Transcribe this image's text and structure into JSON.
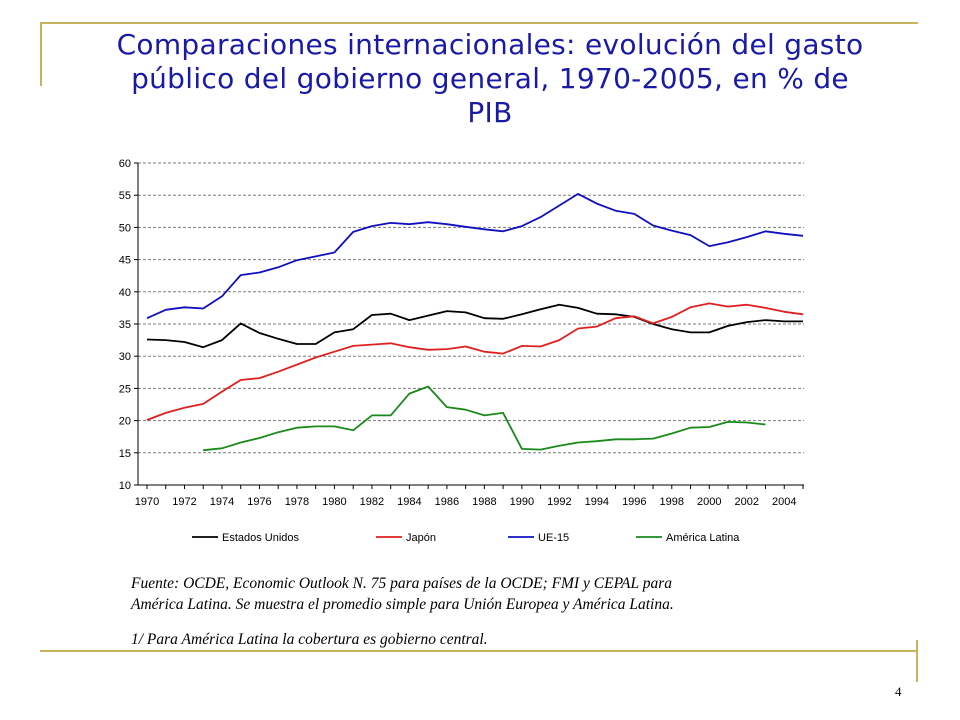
{
  "title_lines": [
    "Comparaciones internacionales: evolución del gasto",
    "público del gobierno general, 1970-2005, en % de",
    "PIB"
  ],
  "footnote": {
    "source_line1": "Fuente: OCDE, Economic Outlook N. 75 para países de la OCDE; FMI y CEPAL para",
    "source_line2": "América Latina. Se muestra el promedio simple para Unión Europea y América Latina.",
    "note": "1/ Para América Latina la cobertura es gobierno central."
  },
  "page_number": "4",
  "colors": {
    "title": "#1a1aa8",
    "decor": "#c8b45a"
  },
  "chart_data": {
    "type": "line",
    "x": [
      1970,
      1971,
      1972,
      1973,
      1974,
      1975,
      1976,
      1977,
      1978,
      1979,
      1980,
      1981,
      1982,
      1983,
      1984,
      1985,
      1986,
      1987,
      1988,
      1989,
      1990,
      1991,
      1992,
      1993,
      1994,
      1995,
      1996,
      1997,
      1998,
      1999,
      2000,
      2001,
      2002,
      2003,
      2004,
      2005
    ],
    "x_tick_labels": [
      "1970",
      "1972",
      "1974",
      "1976",
      "1978",
      "1980",
      "1982",
      "1984",
      "1986",
      "1988",
      "1990",
      "1992",
      "1994",
      "1996",
      "1998",
      "2000",
      "2002",
      "2004"
    ],
    "y_ticks": [
      "10",
      "15",
      "20",
      "25",
      "30",
      "35",
      "40",
      "45",
      "50",
      "55",
      "60"
    ],
    "ylim": [
      10,
      60
    ],
    "grid": "horizontal dashed",
    "legend_position": "bottom",
    "series": [
      {
        "name": "Estados Unidos",
        "color": "#000000",
        "values": [
          32.6,
          32.5,
          32.2,
          31.4,
          32.5,
          35.1,
          33.6,
          32.7,
          31.9,
          31.9,
          33.7,
          34.2,
          36.4,
          36.6,
          35.6,
          36.3,
          37.0,
          36.8,
          35.9,
          35.8,
          36.5,
          37.3,
          38.0,
          37.5,
          36.6,
          36.5,
          36.1,
          35.0,
          34.2,
          33.7,
          33.7,
          34.7,
          35.3,
          35.6,
          35.4,
          35.4
        ]
      },
      {
        "name": "Japón",
        "color": "#e02020",
        "values": [
          20.1,
          21.2,
          22.0,
          22.6,
          24.5,
          26.3,
          26.6,
          27.6,
          28.7,
          29.8,
          30.7,
          31.6,
          31.8,
          32.0,
          31.4,
          31.0,
          31.1,
          31.5,
          30.7,
          30.4,
          31.6,
          31.5,
          32.5,
          34.3,
          34.6,
          35.9,
          36.2,
          35.1,
          36.1,
          37.6,
          38.2,
          37.7,
          38.0,
          37.5,
          36.9,
          36.5
        ]
      },
      {
        "name": "UE-15",
        "color": "#1010c0",
        "values": [
          35.9,
          37.2,
          37.6,
          37.4,
          39.3,
          42.6,
          43.0,
          43.8,
          44.9,
          45.5,
          46.1,
          49.3,
          50.2,
          50.7,
          50.5,
          50.8,
          50.5,
          50.1,
          49.7,
          49.4,
          50.2,
          51.6,
          53.4,
          55.2,
          53.7,
          52.6,
          52.1,
          50.3,
          49.5,
          48.8,
          47.1,
          47.7,
          48.5,
          49.4,
          49.0,
          48.7
        ]
      },
      {
        "name": "América Latina",
        "color": "#1a8a1a",
        "values": [
          null,
          null,
          null,
          15.4,
          15.7,
          16.6,
          17.3,
          18.2,
          18.9,
          19.1,
          19.1,
          18.5,
          20.8,
          20.8,
          24.2,
          25.3,
          22.1,
          21.7,
          20.8,
          21.2,
          15.6,
          15.5,
          16.1,
          16.6,
          16.8,
          17.1,
          17.1,
          17.2,
          18.0,
          18.9,
          19.0,
          19.8,
          19.7,
          19.4,
          null,
          null
        ]
      }
    ]
  }
}
